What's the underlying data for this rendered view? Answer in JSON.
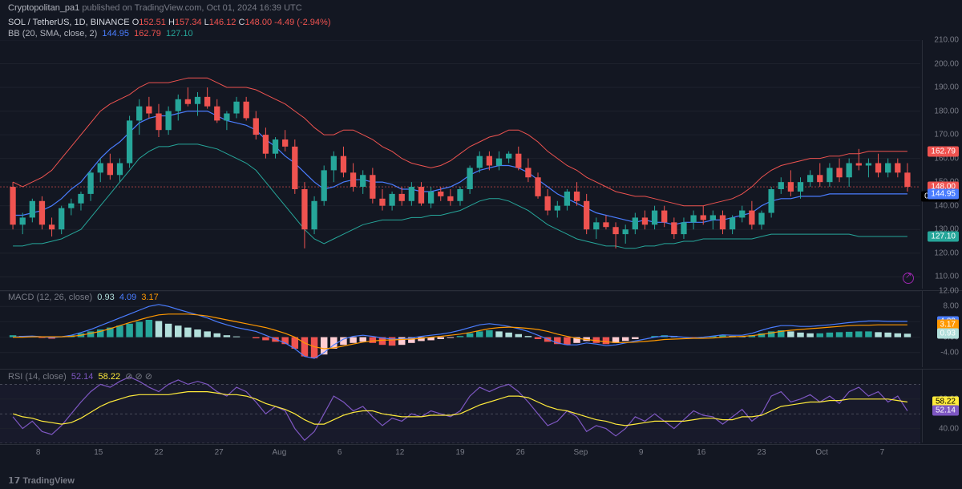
{
  "header": {
    "author": "Cryptopolitan_pa1",
    "middle": "published on TradingView.com,",
    "date": "Oct 01, 2024 16:39 UTC"
  },
  "ticker": {
    "symbol": "SOL / TetherUS, 1D, BINANCE",
    "O": "152.51",
    "H": "157.34",
    "L": "146.12",
    "C": "148.00",
    "chg": "-4.49",
    "chg_pct": "(-2.94%)"
  },
  "bb": {
    "label": "BB (20, SMA, close, 2)",
    "basis": "144.95",
    "upper": "162.79",
    "lower": "127.10"
  },
  "price_panel": {
    "ylim_top": 210,
    "ylim_bot": 105,
    "yticks": [
      210,
      200,
      190,
      180,
      170,
      160,
      150,
      140,
      130,
      120,
      110
    ],
    "tags": [
      {
        "v": 162.79,
        "color": "#ef5350",
        "text": "162.79"
      },
      {
        "v": 148.0,
        "color": "#ef5350",
        "text": "148.00"
      },
      {
        "v": 144.0,
        "color": "#000",
        "text": "07:20:29"
      },
      {
        "v": 144.95,
        "color": "#4a7dff",
        "text": "144.95"
      },
      {
        "v": 127.1,
        "color": "#26a69a",
        "text": "127.10"
      }
    ],
    "grid_color": "#1e222d",
    "candles": [
      {
        "o": 148,
        "h": 150,
        "l": 130,
        "c": 132
      },
      {
        "o": 132,
        "h": 137,
        "l": 128,
        "c": 135
      },
      {
        "o": 135,
        "h": 143,
        "l": 133,
        "c": 142
      },
      {
        "o": 142,
        "h": 144,
        "l": 130,
        "c": 132
      },
      {
        "o": 132,
        "h": 135,
        "l": 127,
        "c": 130
      },
      {
        "o": 130,
        "h": 140,
        "l": 128,
        "c": 139
      },
      {
        "o": 139,
        "h": 143,
        "l": 136,
        "c": 141
      },
      {
        "o": 141,
        "h": 146,
        "l": 138,
        "c": 145
      },
      {
        "o": 145,
        "h": 155,
        "l": 142,
        "c": 154
      },
      {
        "o": 154,
        "h": 160,
        "l": 150,
        "c": 158
      },
      {
        "o": 158,
        "h": 162,
        "l": 151,
        "c": 153
      },
      {
        "o": 153,
        "h": 160,
        "l": 150,
        "c": 158
      },
      {
        "o": 158,
        "h": 178,
        "l": 156,
        "c": 176
      },
      {
        "o": 176,
        "h": 185,
        "l": 170,
        "c": 182
      },
      {
        "o": 182,
        "h": 186,
        "l": 177,
        "c": 179
      },
      {
        "o": 179,
        "h": 183,
        "l": 169,
        "c": 172
      },
      {
        "o": 172,
        "h": 182,
        "l": 170,
        "c": 180
      },
      {
        "o": 180,
        "h": 187,
        "l": 176,
        "c": 185
      },
      {
        "o": 185,
        "h": 190,
        "l": 182,
        "c": 183
      },
      {
        "o": 183,
        "h": 188,
        "l": 178,
        "c": 186
      },
      {
        "o": 186,
        "h": 190,
        "l": 181,
        "c": 182
      },
      {
        "o": 182,
        "h": 185,
        "l": 175,
        "c": 176
      },
      {
        "o": 176,
        "h": 180,
        "l": 172,
        "c": 179
      },
      {
        "o": 179,
        "h": 186,
        "l": 177,
        "c": 184
      },
      {
        "o": 184,
        "h": 186,
        "l": 176,
        "c": 177
      },
      {
        "o": 177,
        "h": 180,
        "l": 168,
        "c": 170
      },
      {
        "o": 170,
        "h": 173,
        "l": 160,
        "c": 162
      },
      {
        "o": 162,
        "h": 169,
        "l": 160,
        "c": 168
      },
      {
        "o": 168,
        "h": 172,
        "l": 163,
        "c": 165
      },
      {
        "o": 165,
        "h": 168,
        "l": 145,
        "c": 147
      },
      {
        "o": 147,
        "h": 150,
        "l": 122,
        "c": 130
      },
      {
        "o": 130,
        "h": 144,
        "l": 128,
        "c": 142
      },
      {
        "o": 142,
        "h": 157,
        "l": 140,
        "c": 155
      },
      {
        "o": 155,
        "h": 163,
        "l": 150,
        "c": 161
      },
      {
        "o": 161,
        "h": 165,
        "l": 152,
        "c": 154
      },
      {
        "o": 154,
        "h": 158,
        "l": 146,
        "c": 148
      },
      {
        "o": 148,
        "h": 155,
        "l": 145,
        "c": 153
      },
      {
        "o": 153,
        "h": 156,
        "l": 141,
        "c": 143
      },
      {
        "o": 143,
        "h": 147,
        "l": 138,
        "c": 140
      },
      {
        "o": 140,
        "h": 146,
        "l": 138,
        "c": 145
      },
      {
        "o": 145,
        "h": 148,
        "l": 140,
        "c": 142
      },
      {
        "o": 142,
        "h": 150,
        "l": 140,
        "c": 148
      },
      {
        "o": 148,
        "h": 150,
        "l": 140,
        "c": 141
      },
      {
        "o": 141,
        "h": 148,
        "l": 139,
        "c": 146
      },
      {
        "o": 146,
        "h": 148,
        "l": 142,
        "c": 144
      },
      {
        "o": 144,
        "h": 147,
        "l": 140,
        "c": 142
      },
      {
        "o": 142,
        "h": 148,
        "l": 140,
        "c": 147
      },
      {
        "o": 147,
        "h": 157,
        "l": 145,
        "c": 156
      },
      {
        "o": 156,
        "h": 163,
        "l": 154,
        "c": 161
      },
      {
        "o": 161,
        "h": 163,
        "l": 155,
        "c": 157
      },
      {
        "o": 157,
        "h": 163,
        "l": 155,
        "c": 160
      },
      {
        "o": 160,
        "h": 163,
        "l": 158,
        "c": 162
      },
      {
        "o": 162,
        "h": 165,
        "l": 155,
        "c": 156
      },
      {
        "o": 156,
        "h": 160,
        "l": 150,
        "c": 152
      },
      {
        "o": 152,
        "h": 154,
        "l": 143,
        "c": 144
      },
      {
        "o": 144,
        "h": 147,
        "l": 136,
        "c": 138
      },
      {
        "o": 138,
        "h": 142,
        "l": 135,
        "c": 140
      },
      {
        "o": 140,
        "h": 147,
        "l": 138,
        "c": 146
      },
      {
        "o": 146,
        "h": 150,
        "l": 140,
        "c": 142
      },
      {
        "o": 142,
        "h": 145,
        "l": 128,
        "c": 130
      },
      {
        "o": 130,
        "h": 135,
        "l": 126,
        "c": 133
      },
      {
        "o": 133,
        "h": 136,
        "l": 130,
        "c": 131
      },
      {
        "o": 131,
        "h": 133,
        "l": 122,
        "c": 128
      },
      {
        "o": 128,
        "h": 132,
        "l": 124,
        "c": 130
      },
      {
        "o": 130,
        "h": 137,
        "l": 128,
        "c": 135
      },
      {
        "o": 135,
        "h": 138,
        "l": 130,
        "c": 132
      },
      {
        "o": 132,
        "h": 140,
        "l": 130,
        "c": 138
      },
      {
        "o": 138,
        "h": 140,
        "l": 131,
        "c": 133
      },
      {
        "o": 133,
        "h": 135,
        "l": 126,
        "c": 128
      },
      {
        "o": 128,
        "h": 135,
        "l": 126,
        "c": 133
      },
      {
        "o": 133,
        "h": 138,
        "l": 130,
        "c": 136
      },
      {
        "o": 136,
        "h": 140,
        "l": 132,
        "c": 134
      },
      {
        "o": 134,
        "h": 138,
        "l": 130,
        "c": 136
      },
      {
        "o": 136,
        "h": 138,
        "l": 128,
        "c": 130
      },
      {
        "o": 130,
        "h": 136,
        "l": 128,
        "c": 135
      },
      {
        "o": 135,
        "h": 140,
        "l": 133,
        "c": 138
      },
      {
        "o": 138,
        "h": 142,
        "l": 130,
        "c": 132
      },
      {
        "o": 132,
        "h": 138,
        "l": 130,
        "c": 137
      },
      {
        "o": 137,
        "h": 148,
        "l": 135,
        "c": 147
      },
      {
        "o": 147,
        "h": 152,
        "l": 145,
        "c": 150
      },
      {
        "o": 150,
        "h": 155,
        "l": 144,
        "c": 146
      },
      {
        "o": 146,
        "h": 152,
        "l": 143,
        "c": 150
      },
      {
        "o": 150,
        "h": 155,
        "l": 148,
        "c": 153
      },
      {
        "o": 153,
        "h": 158,
        "l": 148,
        "c": 150
      },
      {
        "o": 150,
        "h": 158,
        "l": 148,
        "c": 156
      },
      {
        "o": 156,
        "h": 160,
        "l": 150,
        "c": 152
      },
      {
        "o": 152,
        "h": 160,
        "l": 148,
        "c": 158
      },
      {
        "o": 158,
        "h": 164,
        "l": 155,
        "c": 157
      },
      {
        "o": 157,
        "h": 160,
        "l": 152,
        "c": 158
      },
      {
        "o": 158,
        "h": 162,
        "l": 152,
        "c": 154
      },
      {
        "o": 154,
        "h": 160,
        "l": 152,
        "c": 158
      },
      {
        "o": 158,
        "h": 160,
        "l": 152,
        "c": 154
      },
      {
        "o": 154,
        "h": 158,
        "l": 146,
        "c": 148
      }
    ],
    "bb_upper": [
      150,
      148,
      150,
      152,
      155,
      160,
      165,
      170,
      175,
      180,
      183,
      185,
      187,
      190,
      192,
      192,
      192,
      193,
      194,
      194,
      194,
      192,
      190,
      190,
      190,
      189,
      187,
      185,
      183,
      180,
      177,
      173,
      170,
      170,
      172,
      172,
      170,
      168,
      165,
      163,
      160,
      158,
      157,
      156,
      157,
      159,
      162,
      165,
      167,
      169,
      170,
      172,
      172,
      170,
      167,
      163,
      160,
      157,
      155,
      152,
      150,
      148,
      146,
      145,
      144,
      144,
      143,
      142,
      141,
      140,
      140,
      140,
      141,
      142,
      143,
      145,
      148,
      152,
      155,
      157,
      158,
      159,
      160,
      160,
      161,
      161,
      162,
      162,
      163,
      163,
      163,
      163,
      163
    ],
    "bb_lower": [
      123,
      123,
      124,
      124,
      125,
      126,
      128,
      130,
      135,
      140,
      145,
      150,
      155,
      160,
      163,
      165,
      165,
      166,
      166,
      166,
      165,
      164,
      162,
      160,
      158,
      155,
      150,
      145,
      140,
      135,
      130,
      126,
      124,
      126,
      128,
      130,
      132,
      133,
      134,
      134,
      134,
      135,
      135,
      136,
      136,
      137,
      138,
      140,
      142,
      143,
      143,
      142,
      140,
      138,
      135,
      132,
      130,
      128,
      126,
      125,
      124,
      123,
      123,
      122,
      122,
      123,
      123,
      124,
      124,
      125,
      125,
      126,
      126,
      126,
      126,
      126,
      126,
      127,
      128,
      128,
      128,
      128,
      128,
      128,
      128,
      128,
      128,
      127,
      127,
      127,
      127,
      127,
      127
    ],
    "bb_mid": [
      136,
      136,
      137,
      138,
      140,
      143,
      147,
      150,
      155,
      160,
      164,
      167,
      171,
      175,
      177,
      178,
      178,
      179,
      180,
      180,
      180,
      178,
      176,
      175,
      174,
      172,
      168,
      165,
      161,
      158,
      154,
      150,
      147,
      148,
      150,
      151,
      151,
      150,
      150,
      149,
      147,
      147,
      146,
      146,
      147,
      148,
      150,
      153,
      155,
      156,
      157,
      157,
      156,
      154,
      151,
      148,
      145,
      143,
      141,
      139,
      137,
      136,
      135,
      134,
      133,
      134,
      133,
      133,
      132,
      133,
      133,
      133,
      134,
      134,
      135,
      136,
      137,
      140,
      142,
      143,
      143,
      144,
      144,
      144,
      145,
      145,
      145,
      145,
      145,
      145,
      145,
      145,
      145
    ]
  },
  "macd": {
    "label": "MACD (12, 26, close)",
    "v1": "0.93",
    "v2": "4.09",
    "v3": "3.17",
    "ylim_top": 12,
    "ylim_bot": -8,
    "yticks": [
      12,
      8,
      4,
      0,
      -4
    ],
    "tags": [
      {
        "v": 4.09,
        "color": "#4a7dff",
        "text": "4.09"
      },
      {
        "v": 3.17,
        "color": "#ff9800",
        "text": "3.17"
      },
      {
        "v": 0.93,
        "color": "#b2dfdb",
        "text": "0.93"
      }
    ],
    "hist": [
      0.5,
      0.3,
      0.1,
      -0.2,
      -0.4,
      0.2,
      0.5,
      1.0,
      1.5,
      2.0,
      2.5,
      3.0,
      3.5,
      4.0,
      4.5,
      4.2,
      3.5,
      3.0,
      2.5,
      2.0,
      1.5,
      1.0,
      0.5,
      0.2,
      0.0,
      -0.3,
      -0.8,
      -1.2,
      -1.8,
      -3.0,
      -5.0,
      -5.5,
      -4.5,
      -3.0,
      -2.0,
      -1.5,
      -1.2,
      -1.5,
      -2.0,
      -2.2,
      -2.0,
      -1.5,
      -1.0,
      -0.8,
      -0.5,
      -0.2,
      0.3,
      1.0,
      1.5,
      1.8,
      1.5,
      1.2,
      0.8,
      0.3,
      -0.5,
      -1.2,
      -1.8,
      -2.0,
      -1.5,
      -1.0,
      -1.5,
      -1.8,
      -1.5,
      -1.0,
      -0.5,
      0.0,
      0.3,
      0.5,
      0.3,
      0.0,
      -0.3,
      0.0,
      0.3,
      0.5,
      0.3,
      0.2,
      0.5,
      1.0,
      1.5,
      1.8,
      1.5,
      1.2,
      1.0,
      1.0,
      1.2,
      1.3,
      1.4,
      1.5,
      1.5,
      1.3,
      1.2,
      1.0,
      0.9
    ],
    "macd_line": [
      0,
      0.2,
      0.3,
      0.1,
      -0.1,
      0.1,
      0.5,
      1.2,
      2.0,
      3.0,
      4.0,
      5.0,
      6.0,
      7.0,
      8.0,
      8.5,
      8.0,
      7.2,
      6.5,
      5.8,
      5.0,
      4.0,
      3.2,
      2.5,
      2.0,
      1.5,
      0.5,
      -0.5,
      -1.5,
      -3.0,
      -5.0,
      -5.5,
      -4.0,
      -2.0,
      -0.5,
      0.2,
      0.5,
      0.2,
      -0.2,
      -0.5,
      -0.5,
      -0.2,
      0.2,
      0.5,
      0.8,
      1.2,
      1.8,
      2.5,
      3.2,
      3.5,
      3.2,
      2.8,
      2.2,
      1.5,
      0.5,
      -0.5,
      -1.5,
      -2.0,
      -2.0,
      -1.5,
      -1.8,
      -2.2,
      -2.0,
      -1.5,
      -1.0,
      -0.5,
      0.0,
      0.3,
      0.2,
      0.0,
      -0.2,
      0.0,
      0.3,
      0.6,
      0.5,
      0.5,
      1.0,
      1.8,
      2.5,
      3.0,
      3.0,
      2.8,
      2.8,
      3.0,
      3.2,
      3.5,
      3.8,
      4.0,
      4.2,
      4.2,
      4.1,
      4.1,
      4.1
    ],
    "signal_line": [
      0,
      0,
      0.1,
      0.1,
      0.1,
      0.1,
      0.2,
      0.5,
      1.0,
      1.5,
      2.2,
      3.0,
      3.8,
      4.5,
      5.2,
      5.8,
      6.0,
      6.0,
      6.0,
      5.8,
      5.5,
      5.0,
      4.5,
      4.0,
      3.5,
      3.0,
      2.5,
      1.8,
      1.0,
      0.0,
      -1.5,
      -2.5,
      -3.0,
      -2.8,
      -2.3,
      -1.8,
      -1.3,
      -1.0,
      -0.8,
      -0.7,
      -0.6,
      -0.5,
      -0.3,
      0.0,
      0.2,
      0.5,
      0.8,
      1.2,
      1.7,
      2.2,
      2.5,
      2.6,
      2.5,
      2.3,
      2.0,
      1.5,
      0.8,
      0.2,
      -0.3,
      -0.6,
      -0.9,
      -1.2,
      -1.4,
      -1.4,
      -1.3,
      -1.1,
      -0.9,
      -0.6,
      -0.5,
      -0.4,
      -0.3,
      -0.3,
      -0.2,
      0.0,
      0.1,
      0.2,
      0.4,
      0.7,
      1.1,
      1.5,
      1.8,
      2.0,
      2.2,
      2.4,
      2.6,
      2.8,
      3.0,
      3.1,
      3.1,
      3.2,
      3.2,
      3.2,
      3.2
    ]
  },
  "rsi": {
    "label": "RSI (14, close)",
    "v1": "52.14",
    "v2": "58.22",
    "ylim_top": 80,
    "ylim_bot": 30,
    "yticks": [
      60,
      40
    ],
    "tags": [
      {
        "v": 58.22,
        "color": "#ffeb3b",
        "text": "58.22",
        "tc": "#000"
      },
      {
        "v": 52.14,
        "color": "#7e57c2",
        "text": "52.14"
      }
    ],
    "rsi_line": [
      48,
      40,
      45,
      38,
      36,
      42,
      50,
      58,
      65,
      70,
      68,
      72,
      75,
      72,
      68,
      65,
      70,
      73,
      70,
      72,
      70,
      65,
      62,
      68,
      65,
      58,
      50,
      55,
      52,
      40,
      32,
      38,
      50,
      62,
      58,
      52,
      55,
      48,
      42,
      47,
      45,
      50,
      48,
      52,
      50,
      48,
      52,
      62,
      68,
      65,
      68,
      70,
      65,
      58,
      50,
      42,
      45,
      52,
      48,
      38,
      42,
      40,
      35,
      40,
      48,
      45,
      50,
      45,
      40,
      46,
      52,
      49,
      48,
      43,
      48,
      53,
      45,
      50,
      62,
      65,
      58,
      60,
      63,
      58,
      62,
      57,
      65,
      68,
      62,
      65,
      58,
      62,
      52
    ],
    "sma_line": [
      50,
      48,
      47,
      45,
      44,
      43,
      44,
      47,
      51,
      55,
      58,
      60,
      62,
      63,
      63,
      63,
      63,
      64,
      65,
      65,
      65,
      64,
      63,
      63,
      62,
      60,
      57,
      55,
      53,
      50,
      46,
      43,
      43,
      46,
      49,
      51,
      52,
      52,
      50,
      49,
      48,
      48,
      48,
      49,
      49,
      49,
      50,
      53,
      56,
      58,
      60,
      62,
      62,
      61,
      58,
      55,
      53,
      52,
      50,
      48,
      46,
      45,
      43,
      42,
      43,
      44,
      45,
      45,
      45,
      45,
      46,
      47,
      47,
      46,
      46,
      48,
      48,
      49,
      52,
      55,
      56,
      57,
      58,
      58,
      59,
      59,
      60,
      60,
      60,
      60,
      60,
      59,
      58
    ]
  },
  "xaxis": {
    "labels": [
      "8",
      "15",
      "22",
      "27",
      "Aug",
      "6",
      "12",
      "19",
      "26",
      "Sep",
      "9",
      "16",
      "23",
      "Oct",
      "7"
    ]
  },
  "footer": "𝟭𝟳 TradingView",
  "colors": {
    "up": "#26a69a",
    "down": "#ef5350",
    "blue": "#4a7dff",
    "orange": "#ff9800",
    "purple": "#7e57c2",
    "yellow": "#ffeb3b",
    "hist_up_strong": "#26a69a",
    "hist_up_weak": "#b2dfdb",
    "hist_dn_strong": "#ef5350",
    "hist_dn_weak": "#ffcdd2"
  }
}
